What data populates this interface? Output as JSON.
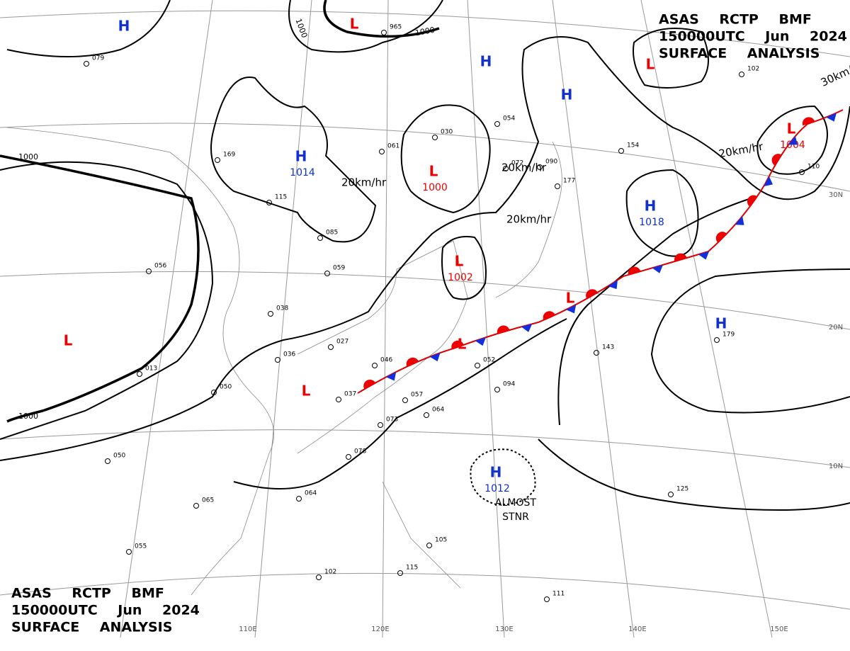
{
  "header_top": {
    "line1": "ASAS RCTP BMF",
    "line2": "150000UTC Jun 2024",
    "line3": "SURFACE ANALYSIS"
  },
  "header_bottom": {
    "line1": "ASAS RCTP BMF",
    "line2": "150000UTC Jun 2024",
    "line3": "SURFACE ANALYSIS"
  },
  "pressure_centers": [
    {
      "type": "H"
    },
    {
      "type": "L"
    },
    {
      "type": "H"
    },
    {
      "type": "H"
    },
    {
      "type": "L"
    },
    {
      "type": "H",
      "value": "1014"
    },
    {
      "type": "L",
      "value": "1000"
    },
    {
      "type": "L",
      "value": "1004"
    },
    {
      "type": "H",
      "value": "1018"
    },
    {
      "type": "L",
      "value": "1002"
    },
    {
      "type": "L"
    },
    {
      "type": "L"
    },
    {
      "type": "H"
    },
    {
      "type": "L"
    },
    {
      "type": "L"
    },
    {
      "type": "H",
      "value": "1012"
    }
  ],
  "movements": [
    "20km/hr",
    "20km/hr",
    "20km/hr",
    "20km/hr",
    "30km/hr"
  ],
  "isobar_labels": [
    "1000",
    "1000",
    "1000",
    "1000"
  ],
  "grid_labels": [
    "110E",
    "120E",
    "130E",
    "140E",
    "150E",
    "10N",
    "20N",
    "30N"
  ],
  "note": [
    "ALMOST",
    "STNR"
  ],
  "stations": [
    "965",
    "079",
    "169",
    "115",
    "085",
    "059",
    "038",
    "027",
    "036",
    "050",
    "046",
    "037",
    "057",
    "064",
    "073",
    "078",
    "065",
    "064",
    "052",
    "094",
    "143",
    "179",
    "125",
    "102",
    "110",
    "154",
    "177",
    "090",
    "072",
    "030",
    "061",
    "054",
    "056",
    "013",
    "050",
    "055",
    "102",
    "115",
    "105",
    "111"
  ]
}
